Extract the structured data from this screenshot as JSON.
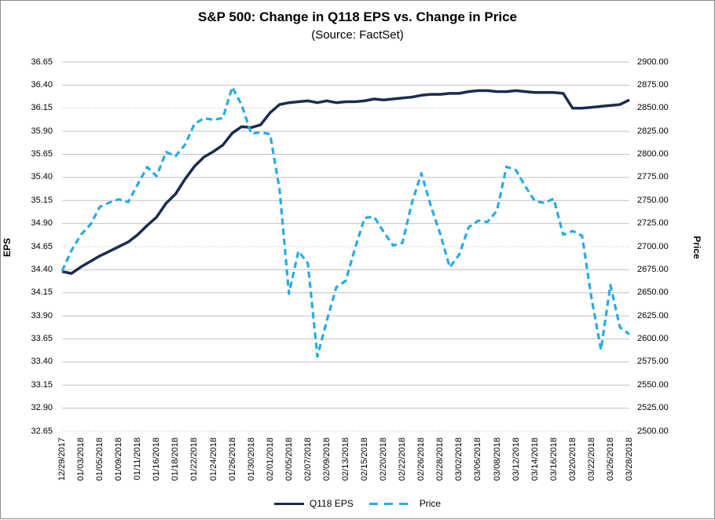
{
  "title": "S&P 500: Change in Q118 EPS vs. Change in Price",
  "subtitle": "(Source: FactSet)",
  "colors": {
    "eps_line": "#1b2c4f",
    "price_line": "#29abe2",
    "gridline": "#c2c2c2",
    "dotted_gridline": "#bdbdbd"
  },
  "chart_data": {
    "type": "line",
    "title": "S&P 500: Change in Q118 EPS vs. Change in Price",
    "subtitle": "(Source: FactSet)",
    "grid": true,
    "legend_position": "bottom",
    "left_axis": {
      "label": "EPS",
      "min": 32.65,
      "max": 36.65,
      "step": 0.25,
      "decimals": 2
    },
    "right_axis": {
      "label": "Price",
      "min": 2500.0,
      "max": 2900.0,
      "step": 25.0,
      "decimals": 2
    },
    "x_label_every": 2,
    "x_labels": [
      "12/29/2017",
      "01/03/2018",
      "01/05/2018",
      "01/09/2018",
      "01/11/2018",
      "01/16/2018",
      "01/18/2018",
      "01/22/2018",
      "01/24/2018",
      "01/26/2018",
      "01/30/2018",
      "02/01/2018",
      "02/05/2018",
      "02/07/2018",
      "02/09/2018",
      "02/13/2018",
      "02/15/2018",
      "02/20/2018",
      "02/22/2018",
      "02/26/2018",
      "02/28/2018",
      "03/02/2018",
      "03/06/2018",
      "03/08/2018",
      "03/12/2018",
      "03/14/2018",
      "03/16/2018",
      "03/20/2018",
      "03/22/2018",
      "03/26/2018",
      "03/28/2018"
    ],
    "series": [
      {
        "name": "Q118 EPS",
        "axis": "left",
        "style": "solid",
        "color": "#1b2c4f",
        "values": [
          34.38,
          34.36,
          34.43,
          34.49,
          34.55,
          34.6,
          34.65,
          34.7,
          34.78,
          34.88,
          34.97,
          35.12,
          35.22,
          35.38,
          35.52,
          35.62,
          35.68,
          35.75,
          35.88,
          35.95,
          35.94,
          35.97,
          36.1,
          36.19,
          36.21,
          36.22,
          36.23,
          36.21,
          36.23,
          36.21,
          36.22,
          36.22,
          36.23,
          36.25,
          36.24,
          36.25,
          36.26,
          36.27,
          36.29,
          36.3,
          36.3,
          36.31,
          36.31,
          36.33,
          36.34,
          36.34,
          36.33,
          36.33,
          36.34,
          36.33,
          36.32,
          36.32,
          36.32,
          36.31,
          36.15,
          36.15,
          36.16,
          36.17,
          36.18,
          36.19,
          36.24
        ]
      },
      {
        "name": "Price",
        "axis": "right",
        "style": "dashed",
        "color": "#29abe2",
        "values": [
          2673.61,
          2695.81,
          2713.06,
          2723.99,
          2743.15,
          2747.71,
          2751.29,
          2748.23,
          2767.56,
          2786.24,
          2776.42,
          2802.56,
          2798.03,
          2810.3,
          2832.97,
          2839.13,
          2837.54,
          2839.25,
          2872.87,
          2853.53,
          2822.43,
          2823.81,
          2821.98,
          2762.13,
          2648.94,
          2695.14,
          2681.66,
          2581.0,
          2619.55,
          2656.0,
          2662.94,
          2698.63,
          2731.2,
          2732.22,
          2716.26,
          2701.33,
          2703.96,
          2747.3,
          2779.6,
          2744.28,
          2713.83,
          2677.67,
          2691.25,
          2720.94,
          2728.12,
          2726.8,
          2738.97,
          2786.57,
          2783.02,
          2765.31,
          2749.48,
          2747.33,
          2752.01,
          2712.92,
          2716.94,
          2711.93,
          2643.69,
          2588.26,
          2658.55,
          2612.62,
          2605.0
        ]
      }
    ]
  }
}
